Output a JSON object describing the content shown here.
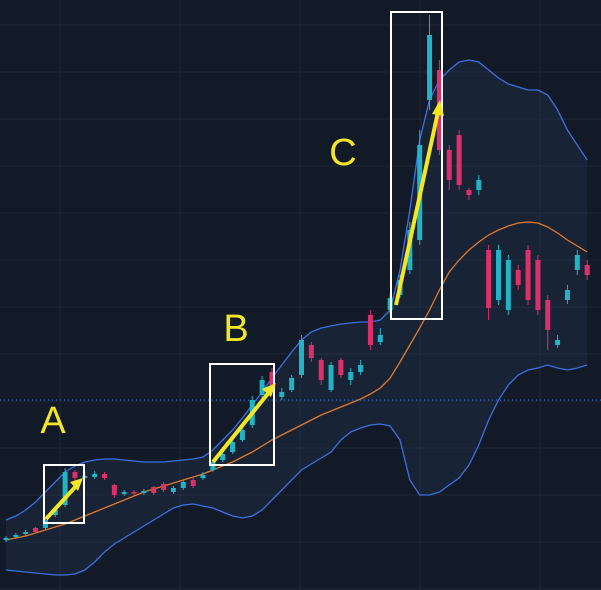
{
  "chart_data": {
    "type": "candlestick",
    "ylim": [
      0,
      590
    ],
    "up_color": "#22b4c6",
    "down_color": "#dd2f6a",
    "open": [
      50,
      53,
      56,
      62,
      62,
      75,
      85,
      118,
      112,
      113,
      116,
      105,
      96,
      98,
      97,
      103,
      106,
      98,
      102,
      110,
      112,
      120,
      130,
      138,
      150,
      165,
      195,
      218,
      193,
      200,
      215,
      245,
      230,
      200,
      230,
      210,
      218,
      275,
      248,
      280,
      295,
      320,
      350,
      490,
      520,
      440,
      455,
      400,
      400,
      340,
      290,
      280,
      320,
      340,
      330,
      290,
      245,
      290,
      320,
      325
    ],
    "high": [
      54,
      57,
      60,
      63,
      72,
      84,
      122,
      120,
      118,
      119,
      118,
      106,
      100,
      100,
      101,
      104,
      108,
      104,
      110,
      112,
      118,
      130,
      138,
      150,
      163,
      194,
      214,
      222,
      202,
      215,
      255,
      248,
      232,
      228,
      232,
      222,
      230,
      280,
      262,
      296,
      315,
      368,
      460,
      575,
      530,
      445,
      460,
      402,
      415,
      345,
      345,
      335,
      325,
      345,
      335,
      295,
      255,
      305,
      340,
      330
    ],
    "low": [
      48,
      51,
      54,
      56,
      60,
      73,
      83,
      108,
      110,
      111,
      110,
      92,
      94,
      95,
      95,
      95,
      98,
      96,
      100,
      102,
      110,
      118,
      128,
      136,
      148,
      162,
      192,
      195,
      190,
      198,
      212,
      228,
      205,
      198,
      212,
      205,
      215,
      240,
      245,
      276,
      292,
      316,
      345,
      480,
      435,
      400,
      400,
      390,
      395,
      270,
      285,
      275,
      300,
      285,
      275,
      240,
      242,
      286,
      315,
      310
    ],
    "close": [
      52,
      55,
      58,
      58,
      70,
      80,
      118,
      112,
      114,
      116,
      112,
      95,
      98,
      97,
      99,
      97,
      100,
      102,
      108,
      104,
      115,
      128,
      136,
      148,
      160,
      190,
      210,
      198,
      198,
      212,
      250,
      232,
      210,
      225,
      215,
      218,
      225,
      245,
      255,
      292,
      310,
      360,
      445,
      555,
      440,
      410,
      405,
      395,
      410,
      282,
      340,
      330,
      305,
      290,
      280,
      260,
      250,
      300,
      335,
      315
    ],
    "bands": [
      {
        "color": "#3d6fe0",
        "values": [
          70,
          74,
          80,
          88,
          98,
          108,
          118,
          124,
          128,
          130,
          131,
          131,
          130,
          129,
          128,
          128,
          128,
          129,
          130,
          131,
          133,
          140,
          150,
          160,
          172,
          185,
          198,
          212,
          225,
          238,
          250,
          258,
          262,
          264,
          266,
          267,
          268,
          268,
          270,
          280,
          320,
          380,
          450,
          490,
          510,
          520,
          528,
          530,
          528,
          520,
          512,
          506,
          503,
          500,
          500,
          495,
          480,
          460,
          445,
          430
        ]
      },
      {
        "color": "#e07a2a",
        "values": [
          50,
          52,
          54,
          57,
          60,
          63,
          66,
          70,
          74,
          78,
          82,
          86,
          90,
          94,
          98,
          101,
          104,
          107,
          110,
          113,
          116,
          120,
          124,
          128,
          133,
          138,
          144,
          150,
          155,
          160,
          165,
          170,
          175,
          179,
          183,
          187,
          191,
          196,
          202,
          212,
          228,
          245,
          262,
          280,
          300,
          318,
          330,
          340,
          348,
          355,
          360,
          364,
          367,
          368,
          367,
          363,
          357,
          350,
          344,
          338
        ]
      },
      {
        "color": "#3d6fe0",
        "values": [
          20,
          19,
          18,
          17,
          16,
          15,
          15,
          16,
          20,
          28,
          38,
          46,
          52,
          58,
          64,
          70,
          76,
          82,
          85,
          86,
          84,
          82,
          78,
          74,
          72,
          74,
          80,
          90,
          100,
          110,
          120,
          126,
          132,
          138,
          150,
          158,
          162,
          165,
          166,
          164,
          150,
          110,
          95,
          95,
          98,
          105,
          112,
          125,
          145,
          170,
          190,
          205,
          215,
          220,
          222,
          225,
          222,
          220,
          222,
          225
        ]
      }
    ],
    "price_line": {
      "value": 190,
      "color": "#3a6fd8"
    },
    "annotations": [
      "A",
      "B",
      "C"
    ]
  }
}
